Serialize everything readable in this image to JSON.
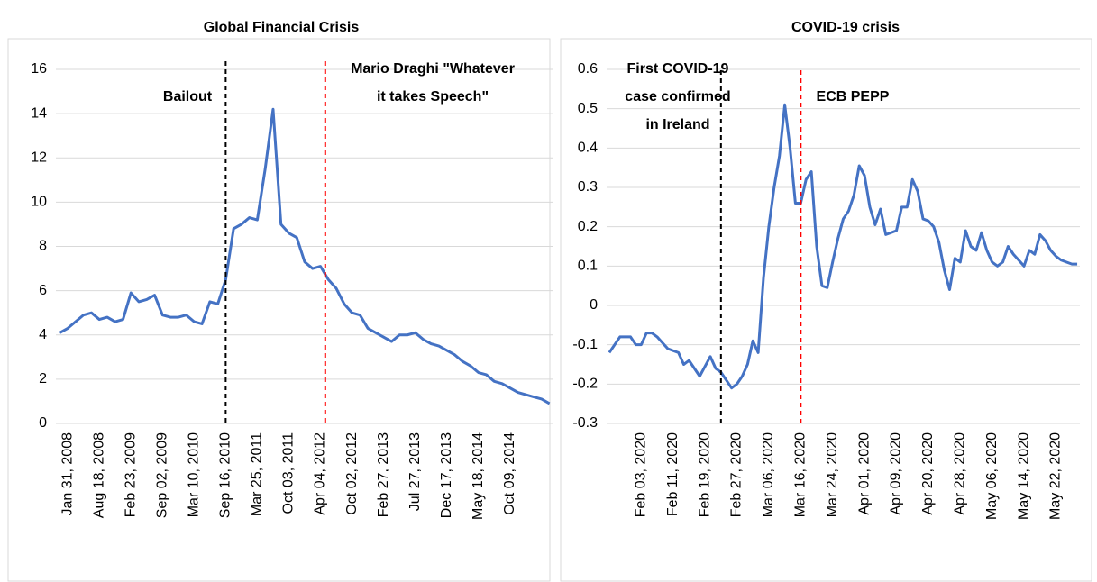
{
  "chart_data": [
    {
      "type": "line",
      "title": "Global Financial Crisis",
      "categories": [
        null,
        "Jan 31, 2008",
        null,
        null,
        null,
        "Aug 18, 2008",
        null,
        null,
        null,
        "Feb 23, 2009",
        null,
        null,
        null,
        "Sep 02, 2009",
        null,
        null,
        null,
        "Mar 10, 2010",
        null,
        null,
        null,
        "Sep 16, 2010",
        null,
        null,
        null,
        "Mar 25, 2011",
        null,
        null,
        null,
        "Oct 03, 2011",
        null,
        null,
        null,
        "Apr 04, 2012",
        null,
        null,
        null,
        "Oct 02, 2012",
        null,
        null,
        null,
        "Feb 27, 2013",
        null,
        null,
        null,
        "Jul 27, 2013",
        null,
        null,
        null,
        "Dec 17, 2013",
        null,
        null,
        null,
        "May 18, 2014",
        null,
        null,
        null,
        "Oct 09, 2014",
        null,
        null,
        null,
        null,
        null
      ],
      "series": [
        {
          "color": "#4472c4",
          "values": [
            4.1,
            4.3,
            4.6,
            4.9,
            5.0,
            4.7,
            4.8,
            4.6,
            4.7,
            5.9,
            5.5,
            5.6,
            5.8,
            4.9,
            4.8,
            4.8,
            4.9,
            4.6,
            4.5,
            5.5,
            5.4,
            6.5,
            8.8,
            9.0,
            9.3,
            9.2,
            11.5,
            14.2,
            9.0,
            8.6,
            8.4,
            7.3,
            7.0,
            7.1,
            6.5,
            6.1,
            5.4,
            5.0,
            4.9,
            4.3,
            4.1,
            3.9,
            3.7,
            4.0,
            4.0,
            4.1,
            3.8,
            3.6,
            3.5,
            3.3,
            3.1,
            2.8,
            2.6,
            2.3,
            2.2,
            1.9,
            1.8,
            1.6,
            1.4,
            1.3,
            1.2,
            1.1,
            0.9
          ]
        }
      ],
      "ylim": [
        0,
        16
      ],
      "yticks": [
        0,
        2,
        4,
        6,
        8,
        10,
        12,
        14,
        16
      ],
      "grid": true,
      "annotations": [
        {
          "lines": [
            "Bailout"
          ],
          "color": "#000000"
        },
        {
          "lines": [
            "Mario Draghi \"Whatever",
            "it takes Speech\""
          ],
          "color": "#ff0000"
        }
      ]
    },
    {
      "type": "line",
      "title": "COVID-19 crisis",
      "categories": [
        null,
        null,
        null,
        null,
        null,
        null,
        "Feb 03, 2020",
        null,
        null,
        null,
        null,
        null,
        "Feb 11, 2020",
        null,
        null,
        null,
        null,
        null,
        "Feb 19, 2020",
        null,
        null,
        null,
        null,
        null,
        "Feb 27, 2020",
        null,
        null,
        null,
        null,
        null,
        "Mar 06, 2020",
        null,
        null,
        null,
        null,
        null,
        "Mar 16, 2020",
        null,
        null,
        null,
        null,
        null,
        "Mar 24, 2020",
        null,
        null,
        null,
        null,
        null,
        "Apr 01, 2020",
        null,
        null,
        null,
        null,
        null,
        "Apr 09, 2020",
        null,
        null,
        null,
        null,
        null,
        "Apr 20, 2020",
        null,
        null,
        null,
        null,
        null,
        "Apr 28, 2020",
        null,
        null,
        null,
        null,
        null,
        "May 06, 2020",
        null,
        null,
        null,
        null,
        null,
        "May 14, 2020",
        null,
        null,
        null,
        null,
        null,
        "May 22, 2020",
        null,
        null,
        null,
        null
      ],
      "series": [
        {
          "color": "#4472c4",
          "values": [
            -0.12,
            -0.1,
            -0.08,
            -0.08,
            -0.08,
            -0.1,
            -0.1,
            -0.07,
            -0.07,
            -0.08,
            -0.095,
            -0.11,
            -0.115,
            -0.12,
            -0.15,
            -0.14,
            -0.16,
            -0.18,
            -0.155,
            -0.13,
            -0.16,
            -0.17,
            -0.19,
            -0.21,
            -0.2,
            -0.18,
            -0.15,
            -0.09,
            -0.12,
            0.07,
            0.2,
            0.3,
            0.38,
            0.51,
            0.4,
            0.26,
            0.26,
            0.32,
            0.34,
            0.15,
            0.05,
            0.045,
            0.11,
            0.17,
            0.22,
            0.24,
            0.28,
            0.355,
            0.33,
            0.25,
            0.205,
            0.245,
            0.18,
            0.185,
            0.19,
            0.25,
            0.25,
            0.32,
            0.29,
            0.22,
            0.215,
            0.2,
            0.16,
            0.09,
            0.04,
            0.12,
            0.11,
            0.19,
            0.15,
            0.14,
            0.185,
            0.14,
            0.11,
            0.1,
            0.11,
            0.15,
            0.13,
            0.115,
            0.1,
            0.14,
            0.13,
            0.18,
            0.165,
            0.14,
            0.125,
            0.115,
            0.11,
            0.105,
            0.105
          ]
        }
      ],
      "ylim": [
        -0.3,
        0.6
      ],
      "yticks": [
        -0.3,
        -0.2,
        -0.1,
        0,
        0.1,
        0.2,
        0.3,
        0.4,
        0.5,
        0.6
      ],
      "grid": true,
      "annotations": [
        {
          "lines": [
            "First COVID-19",
            "case confirmed",
            "in Ireland"
          ],
          "color": "#000000"
        },
        {
          "lines": [
            "ECB PEPP"
          ],
          "color": "#ff0000"
        }
      ]
    }
  ]
}
